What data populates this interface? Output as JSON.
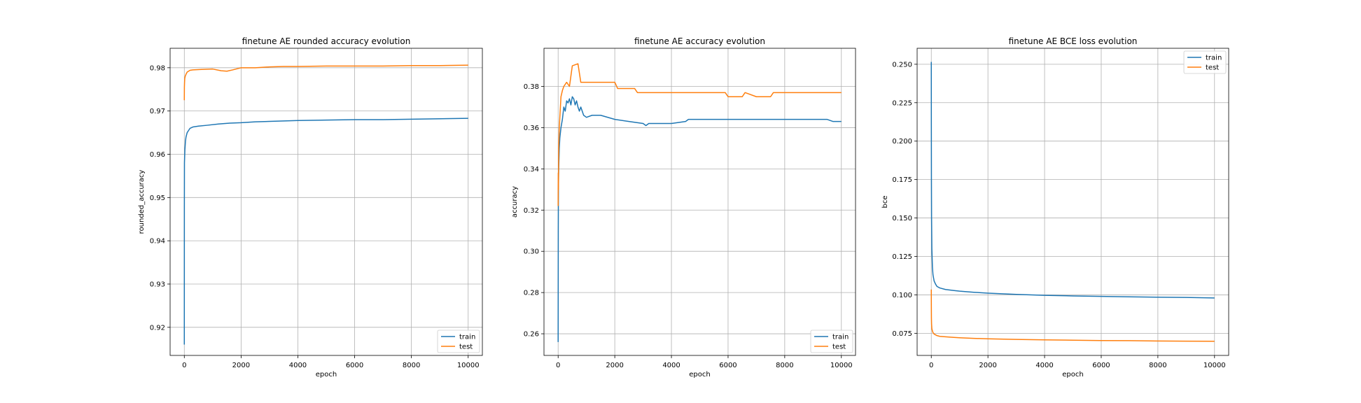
{
  "chart_data": [
    {
      "type": "line",
      "title": "finetune AE rounded accuracy evolution",
      "xlabel": "epoch",
      "ylabel": "rounded_accuracy",
      "xlim": [
        -500,
        10500
      ],
      "ylim": [
        0.9135,
        0.9845
      ],
      "xticks": [
        0,
        2000,
        4000,
        6000,
        8000,
        10000
      ],
      "yticks": [
        0.92,
        0.93,
        0.94,
        0.95,
        0.96,
        0.97,
        0.98
      ],
      "ytick_labels": [
        "0.92",
        "0.93",
        "0.94",
        "0.95",
        "0.96",
        "0.97",
        "0.98"
      ],
      "grid": true,
      "legend": "lower-right",
      "series": [
        {
          "name": "train",
          "color": "#1f77b4",
          "x": [
            0,
            2,
            5,
            10,
            20,
            40,
            60,
            100,
            150,
            200,
            300,
            500,
            800,
            1200,
            1600,
            2000,
            2500,
            3000,
            3500,
            4000,
            5000,
            6000,
            7000,
            8000,
            9000,
            10000
          ],
          "y": [
            0.916,
            0.948,
            0.958,
            0.959,
            0.961,
            0.963,
            0.964,
            0.965,
            0.9655,
            0.966,
            0.9663,
            0.9665,
            0.9667,
            0.967,
            0.9672,
            0.9673,
            0.9675,
            0.9676,
            0.9677,
            0.9678,
            0.9679,
            0.968,
            0.968,
            0.9681,
            0.9682,
            0.9683
          ]
        },
        {
          "name": "test",
          "color": "#ff7f0e",
          "x": [
            0,
            3,
            8,
            15,
            30,
            60,
            100,
            150,
            200,
            300,
            600,
            1000,
            1300,
            1500,
            1700,
            2000,
            2500,
            3000,
            3500,
            4000,
            5000,
            6000,
            7000,
            8000,
            9000,
            10000
          ],
          "y": [
            0.9725,
            0.9755,
            0.9765,
            0.9775,
            0.978,
            0.9785,
            0.979,
            0.9792,
            0.9794,
            0.9795,
            0.9796,
            0.9797,
            0.9793,
            0.9792,
            0.9795,
            0.98,
            0.98,
            0.9802,
            0.9803,
            0.9803,
            0.9804,
            0.9804,
            0.9804,
            0.9805,
            0.9805,
            0.9806
          ]
        }
      ]
    },
    {
      "type": "line",
      "title": "finetune AE accuracy evolution",
      "xlabel": "epoch",
      "ylabel": "accuracy",
      "xlim": [
        -500,
        10500
      ],
      "ylim": [
        0.2495,
        0.3985
      ],
      "xticks": [
        0,
        2000,
        4000,
        6000,
        8000,
        10000
      ],
      "yticks": [
        0.26,
        0.28,
        0.3,
        0.32,
        0.34,
        0.36,
        0.38
      ],
      "ytick_labels": [
        "0.26",
        "0.28",
        "0.30",
        "0.32",
        "0.34",
        "0.36",
        "0.38"
      ],
      "grid": true,
      "legend": "lower-right",
      "series": [
        {
          "name": "train",
          "color": "#1f77b4",
          "x": [
            0,
            5,
            10,
            20,
            40,
            60,
            100,
            150,
            200,
            250,
            300,
            350,
            400,
            450,
            500,
            550,
            600,
            650,
            700,
            750,
            800,
            900,
            1000,
            1200,
            1500,
            2000,
            2500,
            3000,
            3100,
            3200,
            3500,
            4000,
            4500,
            4600,
            5000,
            6000,
            7000,
            8000,
            9000,
            9500,
            9700,
            10000
          ],
          "y": [
            0.256,
            0.31,
            0.33,
            0.34,
            0.35,
            0.355,
            0.36,
            0.364,
            0.37,
            0.368,
            0.373,
            0.372,
            0.374,
            0.371,
            0.375,
            0.374,
            0.371,
            0.373,
            0.37,
            0.368,
            0.37,
            0.366,
            0.365,
            0.366,
            0.366,
            0.364,
            0.363,
            0.362,
            0.361,
            0.362,
            0.362,
            0.362,
            0.363,
            0.364,
            0.364,
            0.364,
            0.364,
            0.364,
            0.364,
            0.364,
            0.363,
            0.363
          ]
        },
        {
          "name": "test",
          "color": "#ff7f0e",
          "x": [
            0,
            5,
            10,
            20,
            40,
            60,
            100,
            150,
            200,
            300,
            400,
            500,
            700,
            800,
            1000,
            1500,
            2000,
            2100,
            2500,
            2700,
            2800,
            3000,
            4000,
            5000,
            5900,
            6000,
            6500,
            6600,
            7000,
            7500,
            7600,
            8000,
            9000,
            10000
          ],
          "y": [
            0.322,
            0.338,
            0.33,
            0.35,
            0.36,
            0.365,
            0.375,
            0.378,
            0.38,
            0.382,
            0.38,
            0.39,
            0.391,
            0.382,
            0.382,
            0.382,
            0.382,
            0.379,
            0.379,
            0.379,
            0.377,
            0.377,
            0.377,
            0.377,
            0.377,
            0.375,
            0.375,
            0.377,
            0.375,
            0.375,
            0.377,
            0.377,
            0.377,
            0.377
          ]
        }
      ]
    },
    {
      "type": "line",
      "title": "finetune AE BCE loss evolution",
      "xlabel": "epoch",
      "ylabel": "bce",
      "xlim": [
        -500,
        10500
      ],
      "ylim": [
        0.0606,
        0.2604
      ],
      "xticks": [
        0,
        2000,
        4000,
        6000,
        8000,
        10000
      ],
      "yticks": [
        0.075,
        0.1,
        0.125,
        0.15,
        0.175,
        0.2,
        0.225,
        0.25
      ],
      "ytick_labels": [
        "0.075",
        "0.100",
        "0.125",
        "0.150",
        "0.175",
        "0.200",
        "0.225",
        "0.250"
      ],
      "grid": true,
      "legend": "top-right",
      "series": [
        {
          "name": "train",
          "color": "#1f77b4",
          "x": [
            0,
            2,
            5,
            10,
            20,
            40,
            60,
            100,
            150,
            200,
            300,
            500,
            800,
            1000,
            1500,
            2000,
            3000,
            4000,
            5000,
            6000,
            7000,
            8000,
            9000,
            10000
          ],
          "y": [
            0.2515,
            0.21,
            0.175,
            0.15,
            0.13,
            0.118,
            0.113,
            0.109,
            0.107,
            0.1055,
            0.1045,
            0.1035,
            0.1028,
            0.1024,
            0.1017,
            0.1011,
            0.1003,
            0.0997,
            0.0993,
            0.099,
            0.0987,
            0.0985,
            0.0983,
            0.098
          ]
        },
        {
          "name": "test",
          "color": "#ff7f0e",
          "x": [
            0,
            2,
            5,
            10,
            20,
            40,
            60,
            100,
            150,
            200,
            300,
            500,
            800,
            1000,
            1500,
            2000,
            3000,
            4000,
            5000,
            6000,
            7000,
            8000,
            9000,
            10000
          ],
          "y": [
            0.1035,
            0.093,
            0.085,
            0.081,
            0.078,
            0.0765,
            0.0755,
            0.0745,
            0.074,
            0.0735,
            0.073,
            0.0727,
            0.0723,
            0.0721,
            0.0717,
            0.0714,
            0.071,
            0.0707,
            0.0705,
            0.0703,
            0.0702,
            0.07,
            0.0699,
            0.0698
          ]
        }
      ]
    }
  ]
}
